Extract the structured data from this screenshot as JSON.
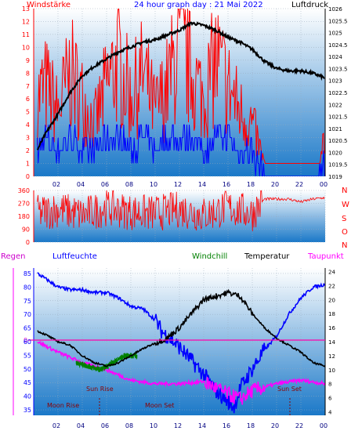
{
  "header": {
    "title": "24 hour graph day : 21 Mai 2022",
    "left_label": "Windstärke",
    "right_label": "Luftdruck"
  },
  "labels2": {
    "compass": [
      "N",
      "W",
      "S",
      "O",
      "N"
    ]
  },
  "labels3": {
    "regen": "Regen",
    "luftfeuchte": "Luftfeuchte",
    "windchill": "Windchill",
    "temperatur": "Temperatur",
    "taupunkt": "Taupunkt",
    "zero_mark": "0"
  },
  "annotations": {
    "sun_rise": "Sun Rise",
    "sun_set": "Sun Set",
    "moon_rise": "Moon Rise",
    "moon_set": "Moon Set"
  },
  "colors": {
    "wind": "#ff0000",
    "gust": "#0000ff",
    "pressure": "#000000",
    "temperature": "#000000",
    "humidity": "#0000ff",
    "dewpoint": "#ff00ff",
    "windchill": "#008000",
    "panel_top": "#ffffff",
    "panel_bottom": "#1a78c8"
  },
  "chart_data": [
    {
      "type": "line",
      "title": "24 hour graph day : 21 Mai 2022",
      "x_ticks": [
        "02",
        "04",
        "06",
        "08",
        "10",
        "12",
        "14",
        "16",
        "18",
        "20",
        "22",
        "00"
      ],
      "y_left": {
        "label": "Windstärke",
        "ticks": [
          0,
          1,
          2,
          3,
          4,
          5,
          6,
          7,
          8,
          9,
          10,
          11,
          12,
          13
        ],
        "range": [
          0,
          13
        ]
      },
      "y_right": {
        "label": "Luftdruck",
        "ticks": [
          1019,
          1019.5,
          1020,
          1020.5,
          1021,
          1021.5,
          1022,
          1022.5,
          1023,
          1023.5,
          1024,
          1024.5,
          1025,
          1025.5,
          1026
        ],
        "tick_labels": [
          "1019",
          "1019.5",
          "1020",
          "1020.5",
          "1021",
          "1021.5",
          "1022",
          "1022.5",
          "1023",
          "1023.5",
          "1024",
          "1024.5",
          "1025",
          "1025.5",
          "1026"
        ],
        "range": [
          1019,
          1026
        ]
      },
      "series": [
        {
          "name": "Luftdruck",
          "x": [
            0.3,
            1,
            2,
            3,
            4,
            5,
            6,
            7,
            8,
            9,
            10,
            11,
            12,
            13,
            14,
            15,
            16,
            17,
            18,
            19,
            20,
            21,
            22,
            23,
            24
          ],
          "y": [
            1020.1,
            1020.8,
            1021.6,
            1022.5,
            1023.2,
            1023.6,
            1023.9,
            1024.2,
            1024.4,
            1024.6,
            1024.7,
            1024.9,
            1025.1,
            1025.4,
            1025.3,
            1025.1,
            1024.8,
            1024.6,
            1024.3,
            1023.8,
            1023.5,
            1023.4,
            1023.4,
            1023.3,
            1023.1
          ]
        },
        {
          "name": "Windstärke",
          "x": [
            0.3,
            1,
            2,
            3,
            4,
            5,
            6,
            7,
            8,
            9,
            10,
            11,
            12,
            13,
            14,
            15,
            16,
            17,
            18,
            19,
            20,
            21,
            22,
            23,
            24
          ],
          "y": [
            6,
            7,
            5,
            8,
            6,
            4,
            7,
            9,
            6,
            8,
            5,
            7,
            10,
            8,
            6,
            9,
            7,
            5,
            4,
            1,
            1,
            1,
            1,
            1,
            3
          ]
        },
        {
          "name": "Böen",
          "x": [
            0.3,
            1,
            2,
            3,
            4,
            5,
            6,
            7,
            8,
            9,
            10,
            11,
            12,
            13,
            14,
            15,
            16,
            17,
            18,
            19,
            20,
            21,
            22,
            23,
            24
          ],
          "y": [
            2,
            3,
            2,
            3,
            2,
            2,
            3,
            3,
            2,
            3,
            2,
            3,
            3,
            3,
            2,
            3,
            3,
            2,
            2,
            0,
            0,
            0,
            0,
            0,
            1
          ]
        }
      ]
    },
    {
      "type": "line",
      "title": "",
      "x_ticks": [
        "02",
        "04",
        "06",
        "08",
        "10",
        "12",
        "14",
        "16",
        "18",
        "20",
        "22",
        "00"
      ],
      "y_left": {
        "ticks": [
          0,
          90,
          180,
          270,
          360
        ],
        "range": [
          0,
          360
        ]
      },
      "y_right": {
        "ticks": [
          "N",
          "W",
          "S",
          "O",
          "N"
        ]
      },
      "series": [
        {
          "name": "Windrichtung",
          "x": [
            0.3,
            2,
            4,
            6,
            8,
            10,
            12,
            14,
            16,
            18,
            19,
            20,
            21,
            22,
            23,
            24
          ],
          "y": [
            200,
            230,
            190,
            240,
            210,
            200,
            230,
            190,
            240,
            200,
            300,
            300,
            300,
            280,
            300,
            310
          ]
        }
      ]
    },
    {
      "type": "line",
      "title": "",
      "x_ticks": [
        "02",
        "04",
        "06",
        "08",
        "10",
        "12",
        "14",
        "16",
        "18",
        "20",
        "22",
        "00"
      ],
      "y_left": {
        "label": "Luftfeuchte",
        "ticks": [
          35,
          40,
          45,
          50,
          55,
          60,
          65,
          70,
          75,
          80,
          85
        ],
        "range": [
          33,
          87
        ]
      },
      "y_right": {
        "label": "Temperatur",
        "ticks": [
          4,
          6,
          8,
          10,
          12,
          14,
          16,
          18,
          20,
          22,
          24
        ],
        "range": [
          3.5,
          24.5
        ]
      },
      "series": [
        {
          "name": "Luftfeuchte",
          "axis": "left",
          "x": [
            0.3,
            1,
            2,
            3,
            4,
            5,
            6,
            7,
            8,
            9,
            10,
            10.5,
            11,
            12,
            13,
            14,
            15,
            16,
            16.5,
            17,
            18,
            19,
            20,
            21,
            22,
            23,
            24
          ],
          "y": [
            85,
            83,
            80,
            79,
            79,
            78,
            78,
            76,
            73,
            72,
            68,
            64,
            62,
            58,
            53,
            48,
            42,
            38,
            36,
            43,
            50,
            57,
            62,
            70,
            76,
            80,
            81
          ]
        },
        {
          "name": "Temperatur",
          "axis": "right",
          "x": [
            0.3,
            1,
            2,
            3,
            4,
            5,
            6,
            7,
            8,
            9,
            10,
            11,
            12,
            13,
            14,
            15,
            16,
            17,
            18,
            19,
            20,
            21,
            22,
            23,
            24
          ],
          "y": [
            15.5,
            15,
            14,
            13.5,
            12,
            11,
            10.5,
            11,
            12,
            13,
            13.8,
            14.5,
            16,
            18,
            20,
            20.5,
            21,
            20.5,
            18,
            16,
            14.5,
            13.5,
            12.5,
            11,
            10.5
          ]
        },
        {
          "name": "Taupunkt",
          "axis": "right",
          "x": [
            0.3,
            2,
            4,
            6,
            8,
            10,
            12,
            14,
            16,
            17,
            18,
            20,
            22,
            24
          ],
          "y": [
            14,
            12.5,
            11,
            10,
            8.5,
            8,
            8,
            8.3,
            6.5,
            5.8,
            7,
            8,
            8.5,
            8
          ]
        },
        {
          "name": "Windchill",
          "axis": "right",
          "x": [
            3.5,
            4.5,
            5.5,
            7.5,
            8.5
          ],
          "y": [
            11,
            10.5,
            10,
            12,
            12
          ]
        }
      ],
      "annotations": [
        "Sun Rise",
        "Sun Set",
        "Moon Rise",
        "Moon Set"
      ]
    }
  ]
}
